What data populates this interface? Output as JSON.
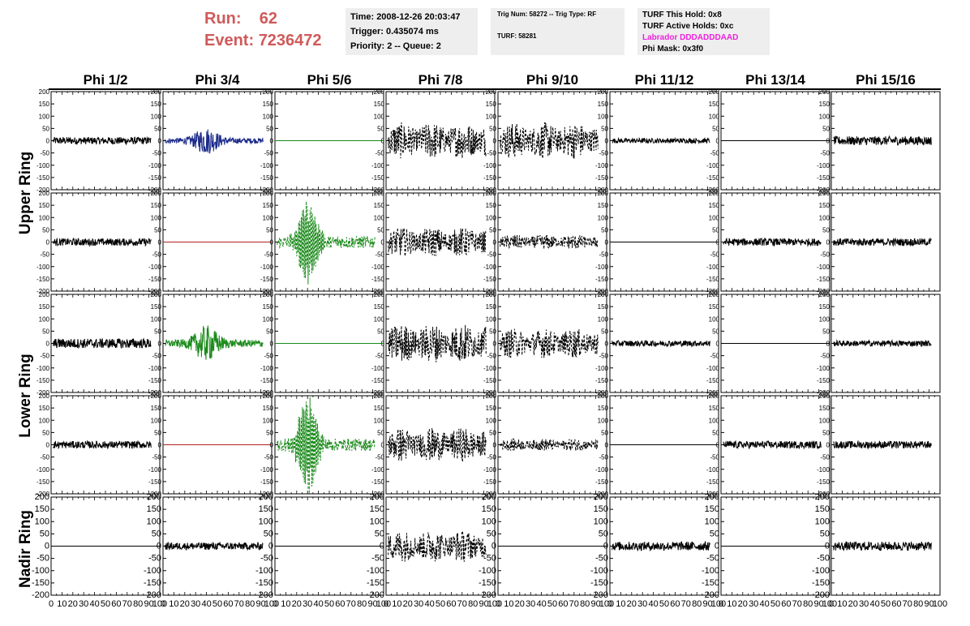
{
  "header": {
    "run_label": "Run:",
    "run_value": "62",
    "event_label": "Event:",
    "event_value": "7236472"
  },
  "info_time": {
    "time": "Time: 2008-12-26 20:03:47",
    "trigger": "Trigger: 0.435074 ms",
    "priority": "Priority: 2 -- Queue: 2"
  },
  "info_trig": {
    "trig_line": "Trig Num: 58272 -- Trig Type: RF",
    "turf_line": "TURF: 58281"
  },
  "info_turf": {
    "this_hold": "TURF This Hold: 0x8",
    "active_holds": "TURF Active Holds: 0xc",
    "labrador": "Labrador DDDADDDAAD",
    "phi_mask": "Phi Mask: 0x3f0"
  },
  "colors": {
    "run_event": "#d05a5a",
    "labrador": "#ee22dd",
    "trace_black": "#000000",
    "trace_blue": "#1c2a8a",
    "trace_green": "#1a8a1a",
    "trace_red": "#b02020"
  },
  "chart_data": {
    "type": "line",
    "column_headers": [
      "Phi 1/2",
      "Phi 3/4",
      "Phi 5/6",
      "Phi 7/8",
      "Phi 9/10",
      "Phi 11/12",
      "Phi 13/14",
      "Phi 15/16"
    ],
    "row_labels": [
      "Upper Ring",
      "Lower Ring",
      "Nadir Ring"
    ],
    "xlim": [
      0,
      100
    ],
    "ylim": [
      -200,
      200
    ],
    "x_ticks": [
      0,
      10,
      20,
      30,
      40,
      50,
      60,
      70,
      80,
      90,
      100
    ],
    "x_tick_labels": [
      "0",
      "10",
      "20",
      "30",
      "40",
      "50",
      "60",
      "70",
      "80",
      "90",
      "100"
    ],
    "y_ticks": [
      200,
      150,
      100,
      50,
      0,
      -50,
      -100,
      -150,
      -200
    ],
    "y_tick_labels": [
      "200",
      "150",
      "100",
      "50",
      "0",
      "-50",
      "-100",
      "-150",
      "-200"
    ],
    "panels": [
      {
        "row": 0,
        "col": 0,
        "style": "noise",
        "amp": 15,
        "color": "black"
      },
      {
        "row": 0,
        "col": 1,
        "style": "pulse",
        "amp": 45,
        "center": 40,
        "color": "blue"
      },
      {
        "row": 0,
        "col": 2,
        "style": "flat",
        "amp": 0,
        "color": "green"
      },
      {
        "row": 0,
        "col": 3,
        "style": "dashed",
        "amp": 75,
        "color": "black"
      },
      {
        "row": 0,
        "col": 4,
        "style": "dashed",
        "amp": 75,
        "color": "black"
      },
      {
        "row": 0,
        "col": 5,
        "style": "noise",
        "amp": 10,
        "color": "black"
      },
      {
        "row": 0,
        "col": 6,
        "style": "flat",
        "amp": 0,
        "color": "black"
      },
      {
        "row": 0,
        "col": 7,
        "style": "noise",
        "amp": 18,
        "color": "black"
      },
      {
        "row": 1,
        "col": 0,
        "style": "noise",
        "amp": 15,
        "color": "black"
      },
      {
        "row": 1,
        "col": 1,
        "style": "flat",
        "amp": 0,
        "color": "red"
      },
      {
        "row": 1,
        "col": 2,
        "style": "gpulse",
        "amp": 160,
        "center": 30,
        "color": "green"
      },
      {
        "row": 1,
        "col": 3,
        "style": "dashed",
        "amp": 60,
        "color": "black"
      },
      {
        "row": 1,
        "col": 4,
        "style": "dashed",
        "amp": 30,
        "color": "black"
      },
      {
        "row": 1,
        "col": 5,
        "style": "flat",
        "amp": 0,
        "color": "black"
      },
      {
        "row": 1,
        "col": 6,
        "style": "noise",
        "amp": 15,
        "color": "black"
      },
      {
        "row": 1,
        "col": 7,
        "style": "noise",
        "amp": 15,
        "color": "black"
      },
      {
        "row": 2,
        "col": 0,
        "style": "noise",
        "amp": 20,
        "color": "black"
      },
      {
        "row": 2,
        "col": 1,
        "style": "pulse",
        "amp": 60,
        "center": 40,
        "color": "green"
      },
      {
        "row": 2,
        "col": 2,
        "style": "flat",
        "amp": 0,
        "color": "green"
      },
      {
        "row": 2,
        "col": 3,
        "style": "dashed",
        "amp": 80,
        "color": "black"
      },
      {
        "row": 2,
        "col": 4,
        "style": "dashed",
        "amp": 60,
        "color": "black"
      },
      {
        "row": 2,
        "col": 5,
        "style": "noise",
        "amp": 12,
        "color": "black"
      },
      {
        "row": 2,
        "col": 6,
        "style": "flat",
        "amp": 0,
        "color": "black"
      },
      {
        "row": 2,
        "col": 7,
        "style": "noise",
        "amp": 12,
        "color": "black"
      },
      {
        "row": 3,
        "col": 0,
        "style": "noise",
        "amp": 15,
        "color": "black"
      },
      {
        "row": 3,
        "col": 1,
        "style": "flat",
        "amp": 0,
        "color": "red"
      },
      {
        "row": 3,
        "col": 2,
        "style": "gpulse",
        "amp": 190,
        "center": 30,
        "color": "green"
      },
      {
        "row": 3,
        "col": 3,
        "style": "dashed",
        "amp": 70,
        "color": "black"
      },
      {
        "row": 3,
        "col": 4,
        "style": "dashed",
        "amp": 25,
        "color": "black"
      },
      {
        "row": 3,
        "col": 5,
        "style": "flat",
        "amp": 0,
        "color": "black"
      },
      {
        "row": 3,
        "col": 6,
        "style": "noise",
        "amp": 15,
        "color": "black"
      },
      {
        "row": 3,
        "col": 7,
        "style": "noise",
        "amp": 15,
        "color": "black"
      },
      {
        "row": 4,
        "col": 0,
        "style": "flat",
        "amp": 0,
        "color": "black"
      },
      {
        "row": 4,
        "col": 1,
        "style": "noise",
        "amp": 15,
        "color": "black"
      },
      {
        "row": 4,
        "col": 2,
        "style": "flat",
        "amp": 0,
        "color": "black"
      },
      {
        "row": 4,
        "col": 3,
        "style": "dashed",
        "amp": 65,
        "color": "black"
      },
      {
        "row": 4,
        "col": 4,
        "style": "flat",
        "amp": 0,
        "color": "black"
      },
      {
        "row": 4,
        "col": 5,
        "style": "noise",
        "amp": 18,
        "color": "black"
      },
      {
        "row": 4,
        "col": 6,
        "style": "flat",
        "amp": 0,
        "color": "black"
      },
      {
        "row": 4,
        "col": 7,
        "style": "noise",
        "amp": 18,
        "color": "black"
      }
    ]
  }
}
